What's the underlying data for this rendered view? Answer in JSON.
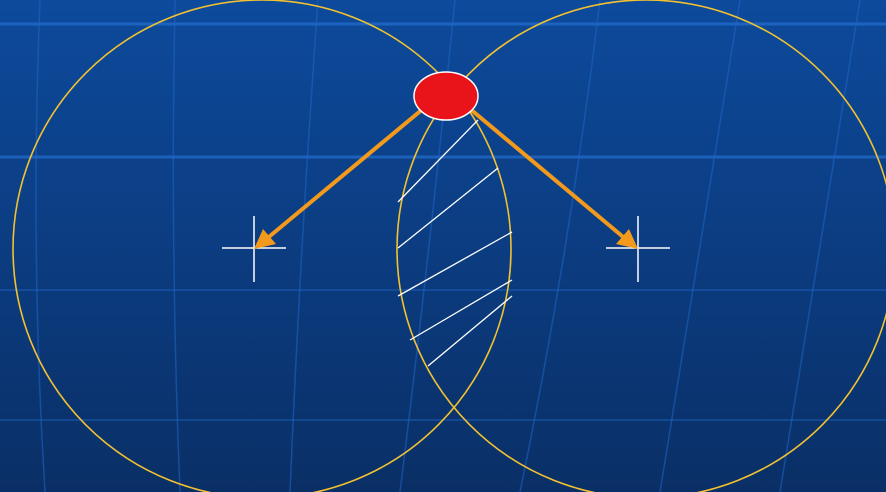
{
  "colors": {
    "background_top": "#0d4a9c",
    "background_bottom": "#0a2f66",
    "grid_line": "#1f66c7",
    "grid_line_bright": "#2a7be0",
    "circle_stroke": "#f2c230",
    "arrow": "#f39a1c",
    "node_fill": "#e8141a",
    "node_stroke": "#ffffff",
    "center_marker": "#ffffff",
    "hatch": "#ffffff"
  },
  "diagram": {
    "circles": [
      {
        "id": "left",
        "center_marker": "crosshair"
      },
      {
        "id": "right",
        "center_marker": "crosshair"
      }
    ],
    "node": {
      "shape": "ellipse",
      "role": "intersection-point"
    },
    "arrows": [
      {
        "from": "node",
        "to": "left-center"
      },
      {
        "from": "node",
        "to": "right-center"
      }
    ],
    "overlap_region": {
      "fill": "hatched"
    }
  }
}
